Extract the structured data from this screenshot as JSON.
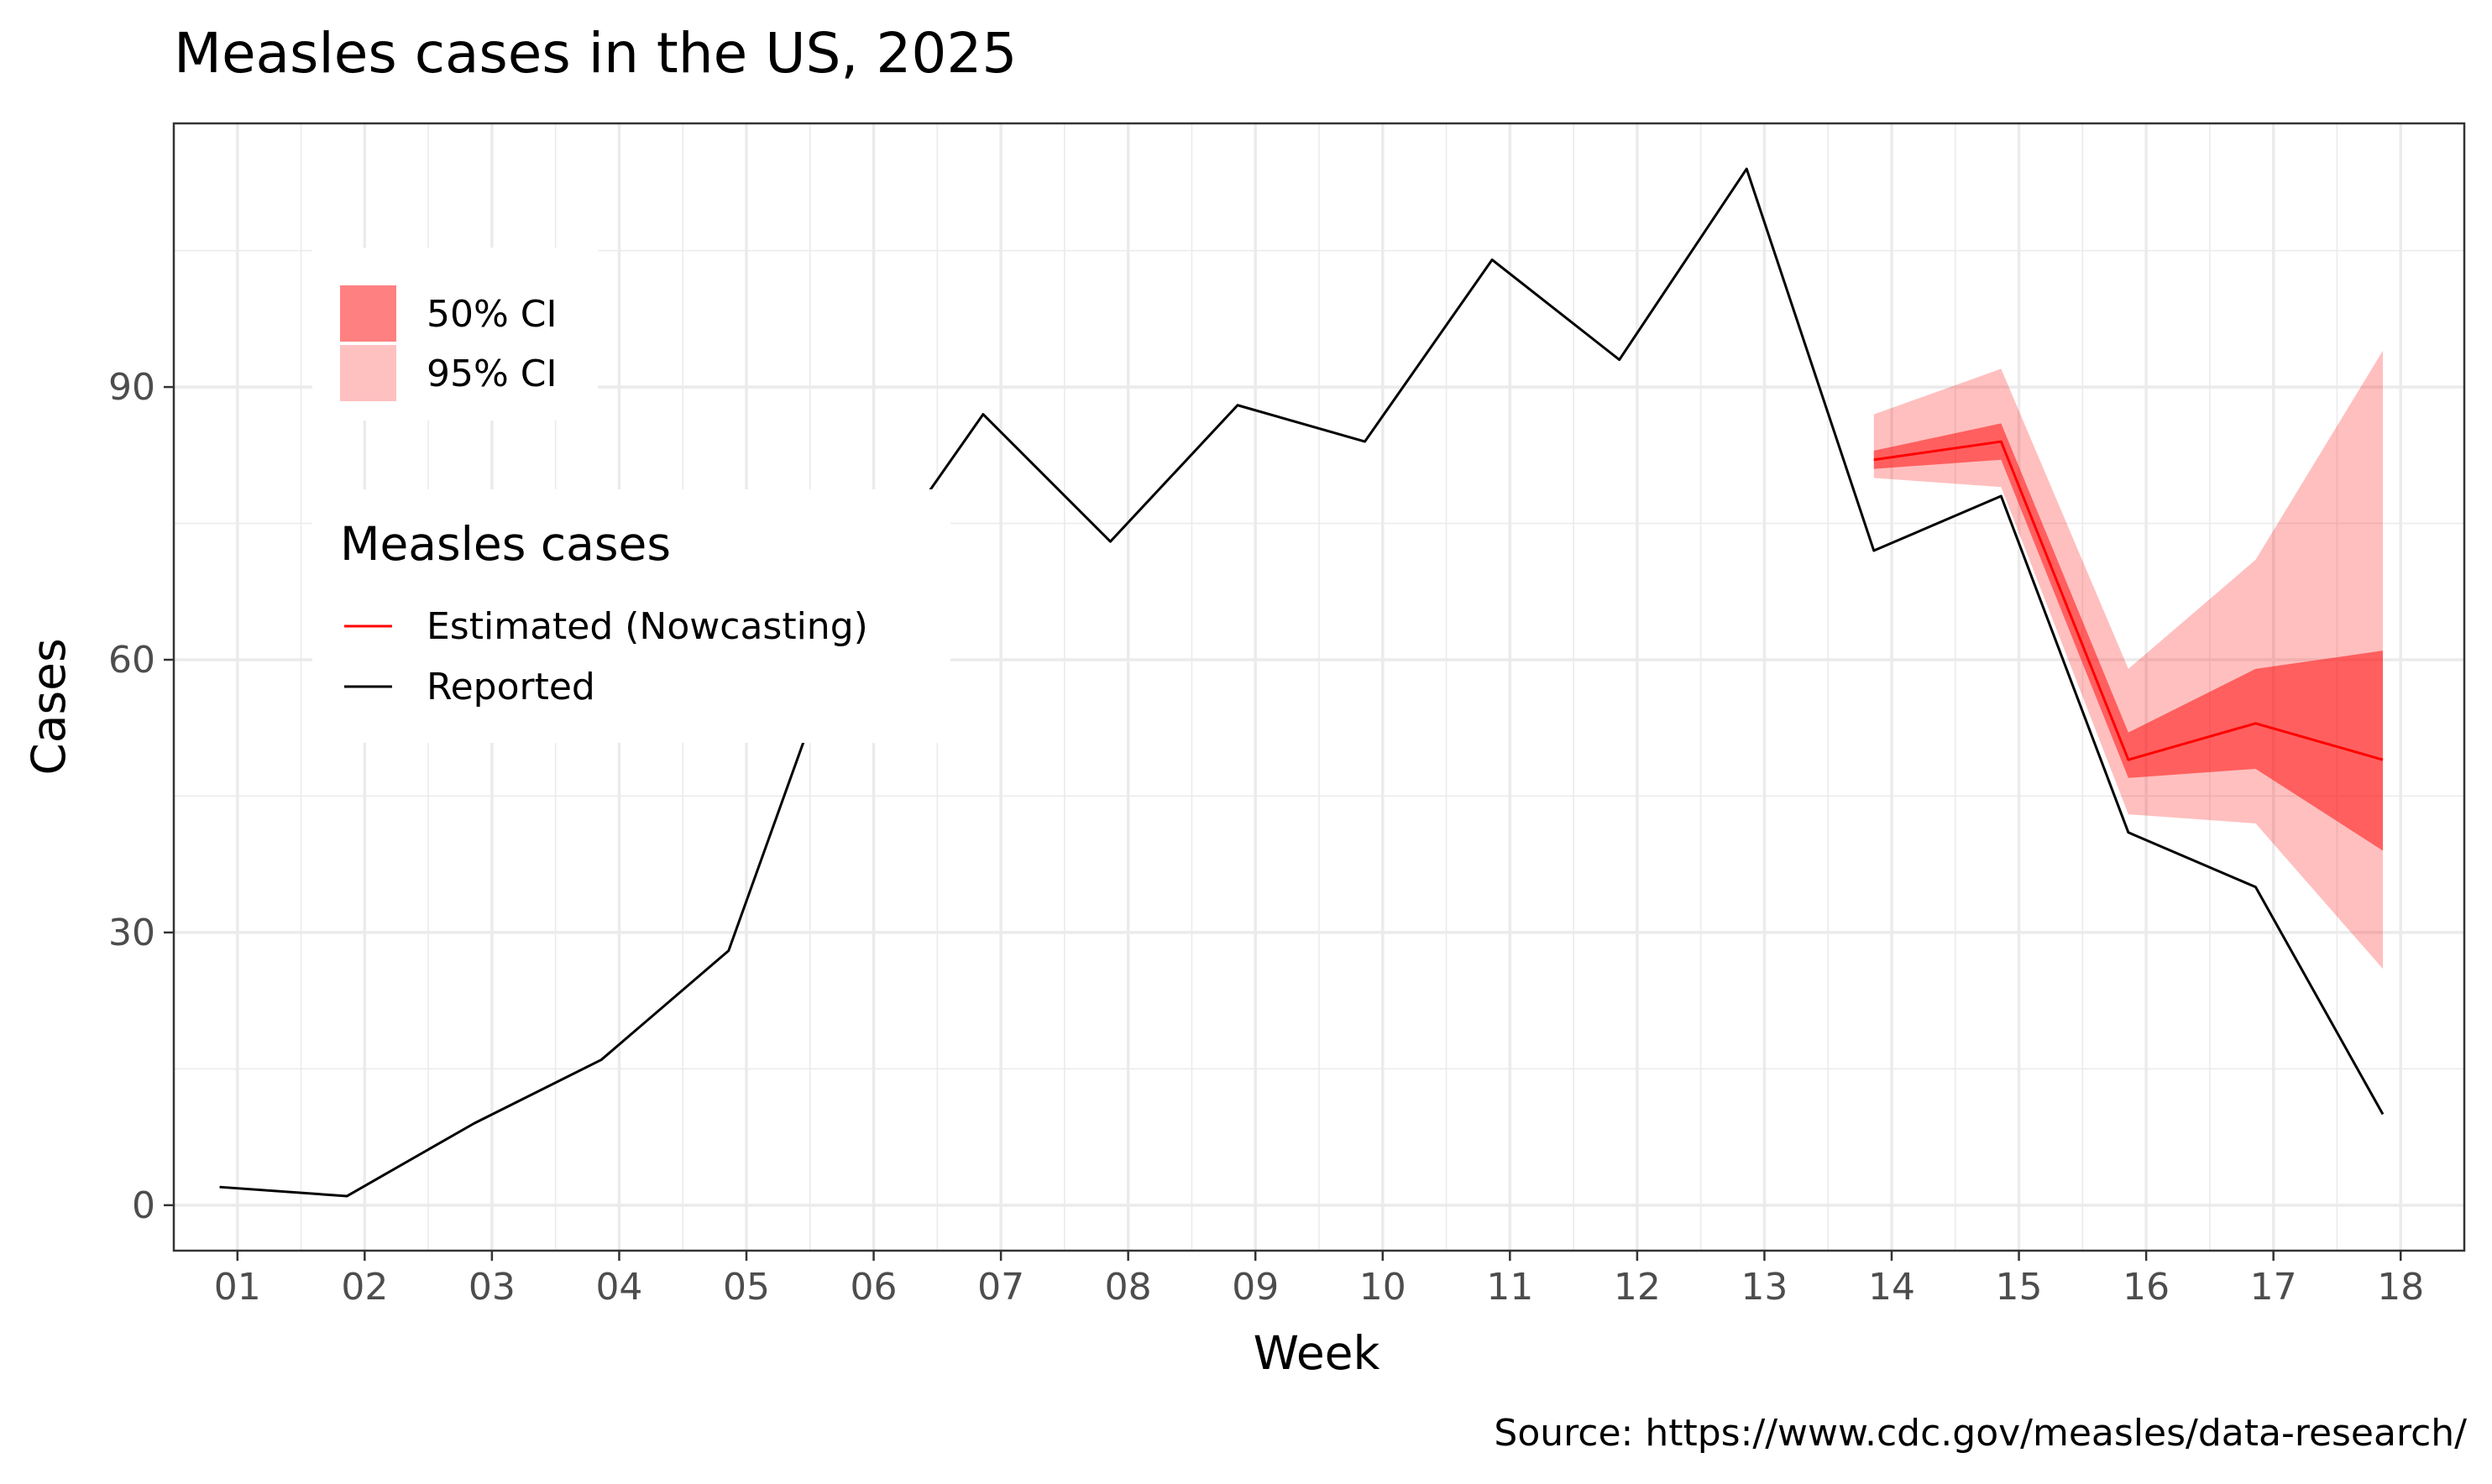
{
  "chart_data": {
    "type": "line",
    "title": "Measles cases in the US, 2025",
    "xlabel": "Week",
    "ylabel": "Cases",
    "caption": "Source: https://www.cdc.gov/measles/data-research/",
    "xlim": [
      0.5,
      18.5
    ],
    "ylim": [
      -5,
      119
    ],
    "x_ticks": [
      "01",
      "02",
      "03",
      "04",
      "05",
      "06",
      "07",
      "08",
      "09",
      "10",
      "11",
      "12",
      "13",
      "14",
      "15",
      "16",
      "17",
      "18"
    ],
    "y_ticks": [
      0,
      30,
      60,
      90
    ],
    "grid": true,
    "series": [
      {
        "name": "Reported",
        "color": "#000000",
        "x": [
          0.86,
          1.86,
          2.86,
          3.86,
          4.86,
          5.86,
          6.86,
          7.86,
          8.86,
          9.86,
          10.86,
          11.86,
          12.86,
          13.86,
          14.86,
          15.86,
          16.86,
          17.86
        ],
        "y": [
          2,
          1,
          9,
          16,
          28,
          67,
          87,
          73,
          88,
          84,
          104,
          93,
          114,
          72,
          78,
          41,
          35,
          10
        ]
      },
      {
        "name": "Estimated (Nowcasting)",
        "color": "#ff0000",
        "x": [
          13.86,
          14.86,
          15.86,
          16.86,
          17.86
        ],
        "y": [
          82,
          84,
          49,
          53,
          49
        ],
        "ci50_lower": [
          81,
          82,
          47,
          48,
          39
        ],
        "ci50_upper": [
          83,
          86,
          52,
          59,
          61
        ],
        "ci95_lower": [
          80,
          79,
          43,
          42,
          26
        ],
        "ci95_upper": [
          87,
          92,
          59,
          71,
          94
        ]
      }
    ],
    "legend": {
      "placement": "top-left",
      "bands": [
        {
          "label": "50% CI",
          "color": "#ff8080"
        },
        {
          "label": "95% CI",
          "color": "#ffc0c0"
        }
      ],
      "title": "Measles cases",
      "lines": [
        {
          "label": "Estimated (Nowcasting)",
          "color": "#ff0000"
        },
        {
          "label": "Reported",
          "color": "#000000"
        }
      ]
    }
  }
}
